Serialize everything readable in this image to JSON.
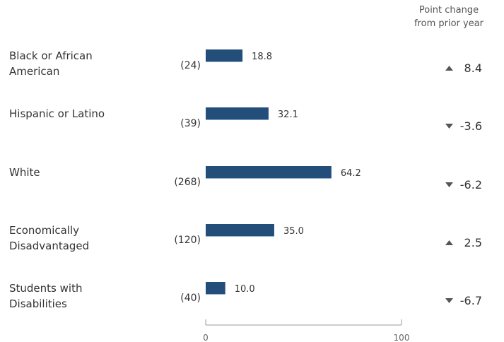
{
  "header": {
    "line1": "Point change",
    "line2": "from prior year"
  },
  "chart_data": {
    "type": "bar",
    "orientation": "horizontal",
    "categories": [
      [
        "Black or African",
        "American"
      ],
      [
        "Hispanic or Latino"
      ],
      [
        "White"
      ],
      [
        "Economically",
        "Disadvantaged"
      ],
      [
        "Students with",
        "Disabilities"
      ]
    ],
    "counts": [
      "(24)",
      "(39)",
      "(268)",
      "(120)",
      "(40)"
    ],
    "values": [
      18.8,
      32.1,
      64.2,
      35.0,
      10.0
    ],
    "value_labels": [
      "18.8",
      "32.1",
      "64.2",
      "35.0",
      "10.0"
    ],
    "changes": [
      8.4,
      -3.6,
      -6.2,
      2.5,
      -6.7
    ],
    "change_labels": [
      "8.4",
      "-3.6",
      "-6.2",
      "2.5",
      "-6.7"
    ],
    "xlim": [
      0,
      100
    ],
    "x_ticks": [
      "0",
      "100"
    ],
    "colors": {
      "bar": "#234e7a",
      "bar_edge": "#8fb0cc",
      "text": "#333333",
      "arrow": "#555555",
      "axis": "#999999"
    }
  }
}
